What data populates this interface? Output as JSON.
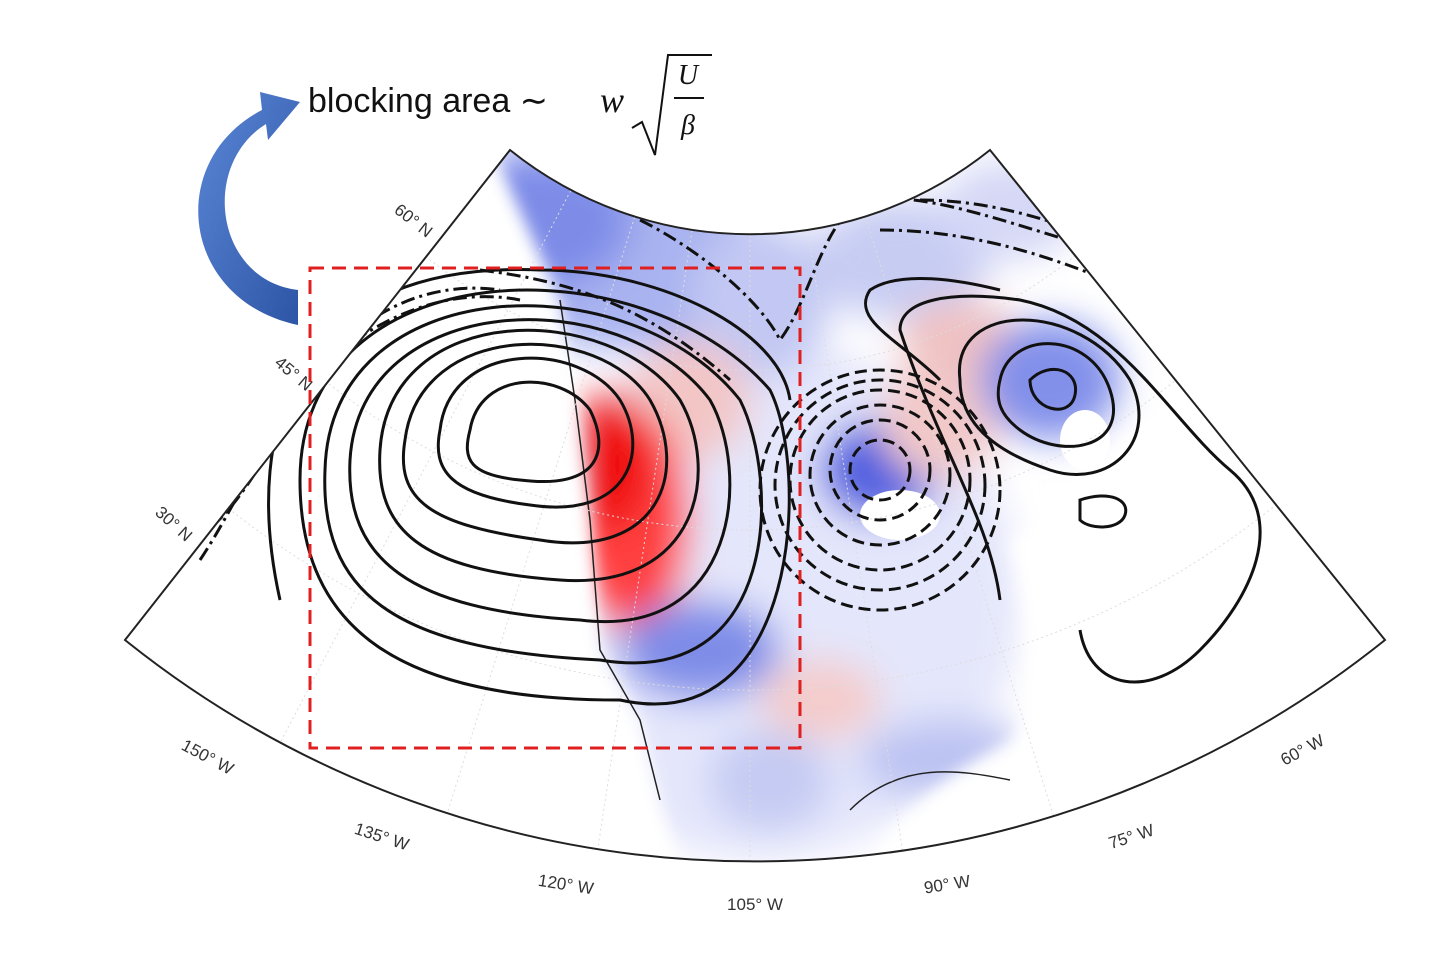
{
  "annotation": {
    "text": "blocking area ∼",
    "variable": "w",
    "numerator": "U",
    "denominator": "β"
  },
  "latitude_labels": [
    "60° N",
    "45° N",
    "30° N"
  ],
  "longitude_labels": [
    "150° W",
    "135° W",
    "120° W",
    "105° W",
    "90° W",
    "75° W",
    "60° W"
  ]
}
